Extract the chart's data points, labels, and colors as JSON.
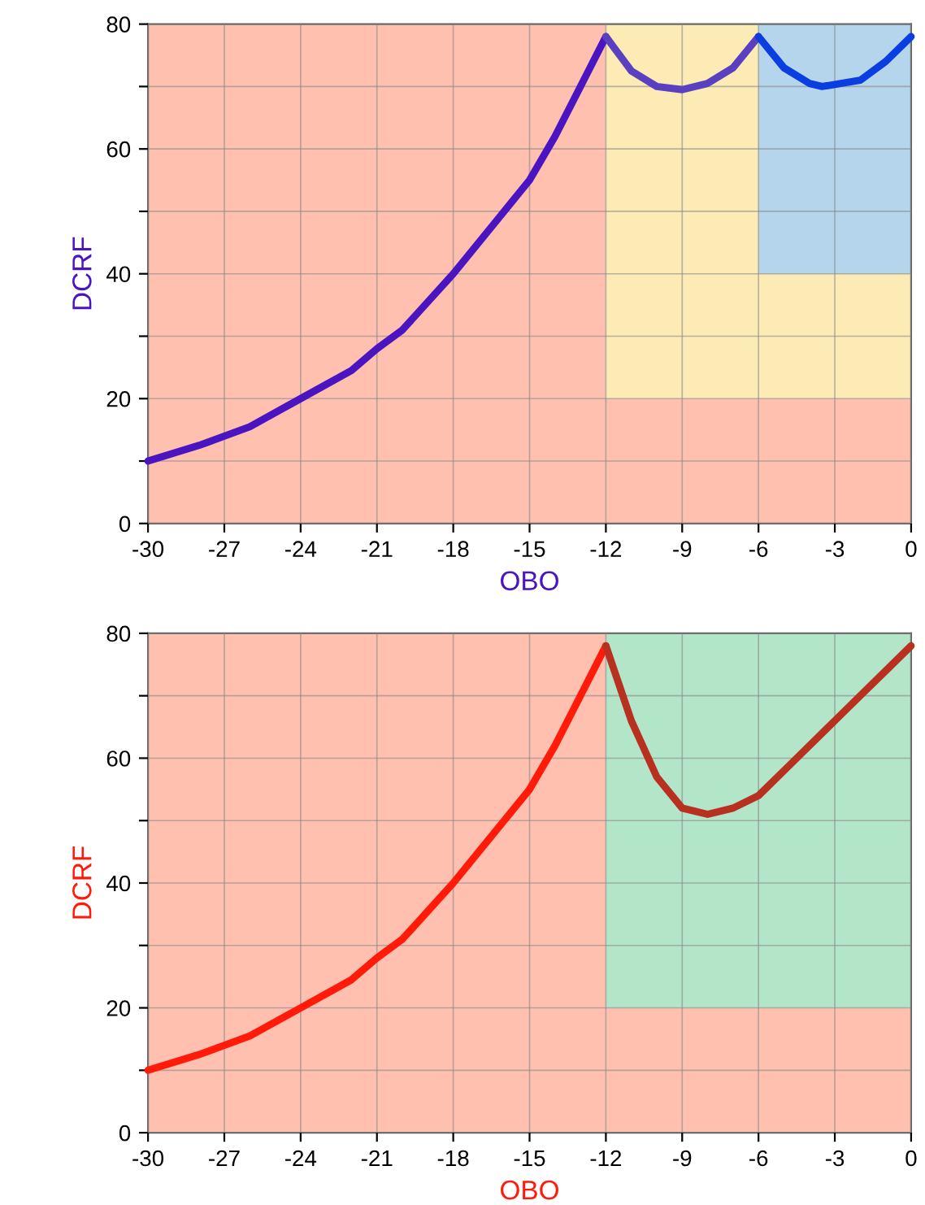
{
  "chart_data": [
    {
      "type": "line",
      "xlabel": "OBO",
      "ylabel": "DCRF",
      "xlim": [
        -30,
        0
      ],
      "ylim": [
        0,
        80
      ],
      "xticks": [
        -30,
        -27,
        -24,
        -21,
        -18,
        -15,
        -12,
        -9,
        -6,
        -3,
        0
      ],
      "yticks": [
        0,
        {
          "value": 10,
          "label": null
        },
        20,
        {
          "value": 30,
          "label": null
        },
        40,
        {
          "value": 50,
          "label": null
        },
        60,
        {
          "value": 70,
          "label": null
        },
        80
      ],
      "grid": true,
      "stacked": true,
      "series": [
        {
          "type": "area",
          "color": "#ffc0b0",
          "x": [
            -30,
            -12,
            -12,
            -6,
            -6,
            0
          ],
          "values": [
            80,
            80,
            20,
            20,
            20,
            20
          ]
        },
        {
          "type": "area",
          "color": "#fdebb5",
          "x": [
            -30,
            -12,
            -12,
            -6,
            -6,
            0
          ],
          "values": [
            0,
            0,
            60,
            60,
            20,
            20
          ]
        },
        {
          "type": "area",
          "color": "#b5d5ec",
          "x": [
            -30,
            -12,
            -12,
            -6,
            -6,
            0
          ],
          "values": [
            0,
            0,
            0,
            0,
            40,
            40
          ]
        },
        {
          "color": "#4a14c0",
          "x": [
            -30,
            -28,
            -27,
            -26,
            -24,
            -22,
            -21,
            -20,
            -18,
            -16,
            -15,
            -14,
            -13,
            -12
          ],
          "values": [
            10,
            12.5,
            14,
            15.5,
            20,
            24.5,
            28,
            31,
            40,
            50,
            55,
            62,
            70,
            78
          ]
        },
        {
          "color": "#5a3fc0",
          "x": [
            -12,
            -11,
            -10,
            -9,
            -8,
            -7,
            -6
          ],
          "values": [
            78,
            72.5,
            70,
            69.5,
            70.5,
            73,
            78
          ]
        },
        {
          "color": "#0a3ee0",
          "x": [
            -6,
            -5,
            -4,
            -3.5,
            -2,
            -1,
            0
          ],
          "values": [
            78,
            73,
            70.5,
            70,
            71,
            74,
            78
          ]
        }
      ]
    },
    {
      "type": "line",
      "xlabel": "OBO",
      "ylabel": "DCRF",
      "xlim": [
        -30,
        0
      ],
      "ylim": [
        0,
        80
      ],
      "xticks": [
        -30,
        -27,
        -24,
        -21,
        -18,
        -15,
        -12,
        -9,
        -6,
        -3,
        0
      ],
      "yticks": [
        0,
        {
          "value": 10,
          "label": null
        },
        20,
        {
          "value": 30,
          "label": null
        },
        40,
        {
          "value": 50,
          "label": null
        },
        60,
        {
          "value": 70,
          "label": null
        },
        80
      ],
      "grid": true,
      "stacked": true,
      "series": [
        {
          "type": "area",
          "color": "#ffc0b0",
          "x": [
            -30,
            -12,
            -12,
            0
          ],
          "values": [
            80,
            80,
            20,
            20
          ]
        },
        {
          "type": "area",
          "color": "#b3e6c9",
          "x": [
            -30,
            -12,
            -12,
            0
          ],
          "values": [
            0,
            0,
            60,
            60
          ]
        },
        {
          "color": "#ff1a0a",
          "x": [
            -30,
            -28,
            -27,
            -26,
            -24,
            -22,
            -21,
            -20,
            -18,
            -16,
            -15,
            -14,
            -13,
            -12
          ],
          "values": [
            10,
            12.5,
            14,
            15.5,
            20,
            24.5,
            28,
            31,
            40,
            50,
            55,
            62,
            70,
            78
          ]
        },
        {
          "color": "#b83020",
          "x": [
            -12,
            -11,
            -10,
            -9,
            -8,
            -7,
            -6,
            -5,
            -4,
            -3,
            -2,
            -1,
            0
          ],
          "values": [
            78,
            66,
            57,
            52,
            51,
            52,
            54,
            58,
            62,
            66,
            70,
            74,
            78
          ]
        }
      ]
    }
  ]
}
